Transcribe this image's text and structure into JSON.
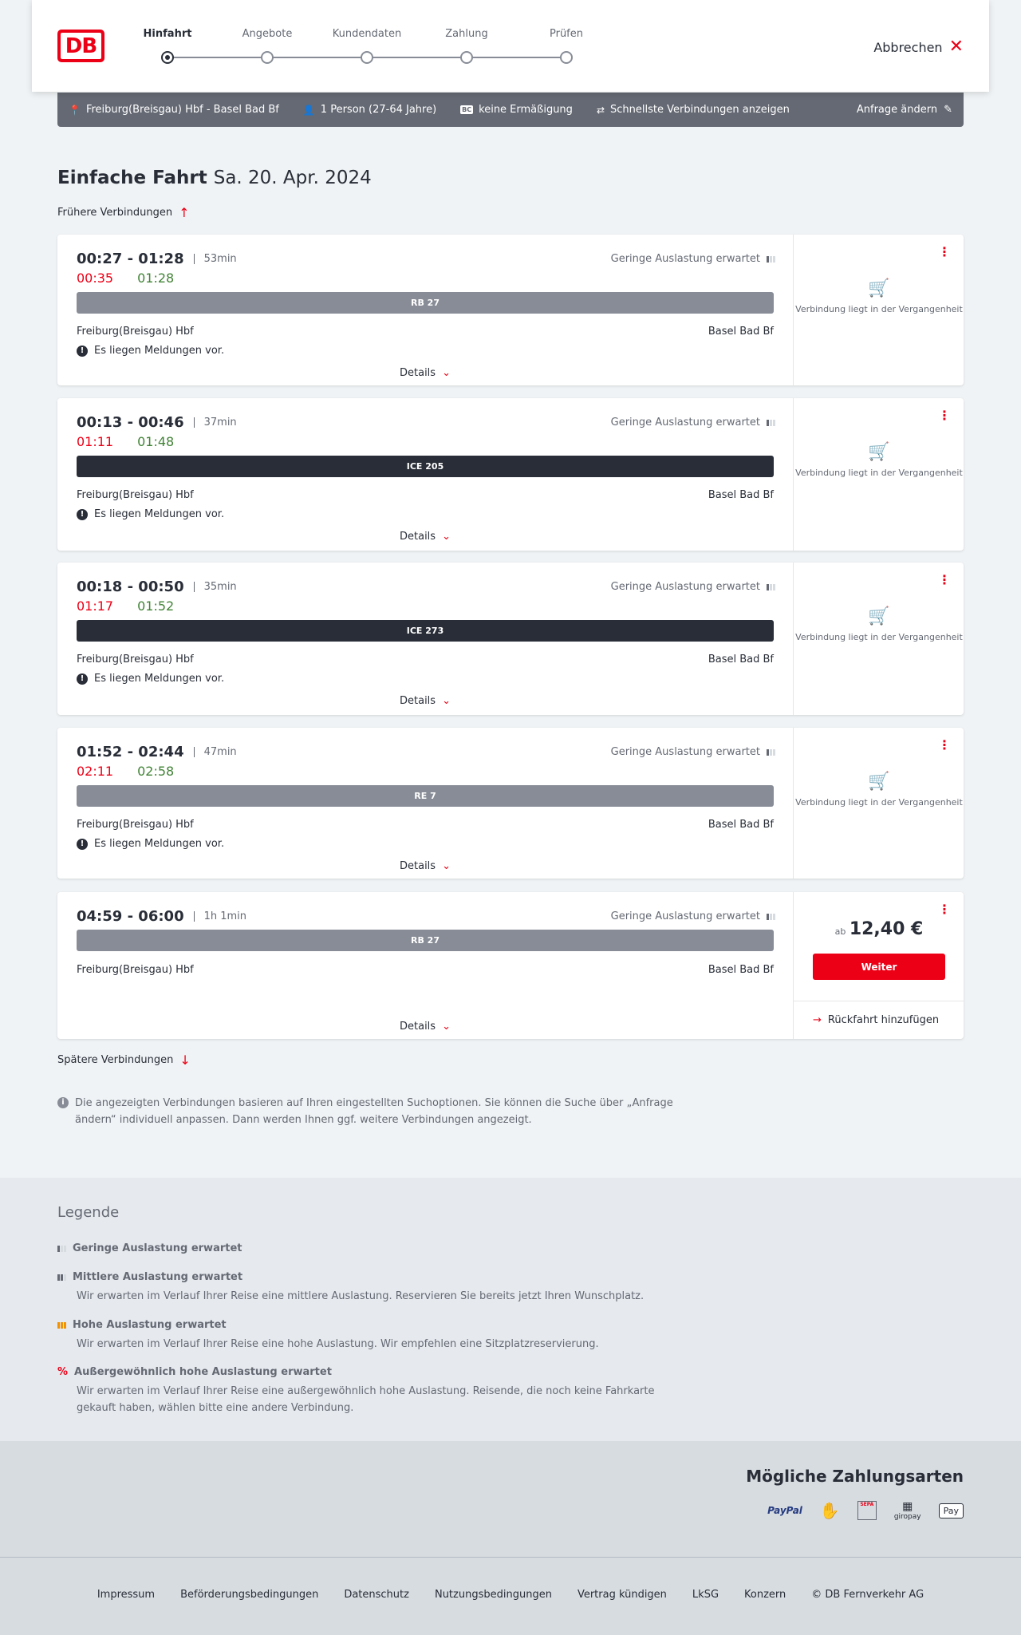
{
  "header": {
    "steps": [
      "Hinfahrt",
      "Angebote",
      "Kundendaten",
      "Zahlung",
      "Prüfen"
    ],
    "active_step": 0,
    "cancel": "Abbrechen",
    "logo": "DB"
  },
  "summary": {
    "route": "Freiburg(Breisgau) Hbf - Basel Bad Bf",
    "persons": "1 Person (27-64 Jahre)",
    "discount": "keine Ermäßigung",
    "discount_badge": "BC",
    "fastest": "Schnellste Verbindungen anzeigen",
    "change": "Anfrage ändern"
  },
  "title": {
    "type": "Einfache Fahrt",
    "date": "Sa. 20. Apr. 2024"
  },
  "earlier": "Frühere Verbindungen",
  "later": "Spätere Verbindungen",
  "connections": [
    {
      "time": "00:27 - 01:28",
      "duration": "53min",
      "dep_actual": "00:35",
      "arr_actual": "01:28",
      "train": "RB 27",
      "train_style": "grey",
      "from": "Freiburg(Breisgau) Hbf",
      "to": "Basel Bad Bf",
      "occupancy": "Geringe Auslastung erwartet",
      "message": "Es liegen Meldungen vor.",
      "details": "Details",
      "status": "Verbindung liegt in der Vergangenheit"
    },
    {
      "time": "00:13 - 00:46",
      "duration": "37min",
      "dep_actual": "01:11",
      "arr_actual": "01:48",
      "train": "ICE 205",
      "train_style": "dark",
      "from": "Freiburg(Breisgau) Hbf",
      "to": "Basel Bad Bf",
      "occupancy": "Geringe Auslastung erwartet",
      "message": "Es liegen Meldungen vor.",
      "details": "Details",
      "status": "Verbindung liegt in der Vergangenheit"
    },
    {
      "time": "00:18 - 00:50",
      "duration": "35min",
      "dep_actual": "01:17",
      "arr_actual": "01:52",
      "train": "ICE 273",
      "train_style": "dark",
      "from": "Freiburg(Breisgau) Hbf",
      "to": "Basel Bad Bf",
      "occupancy": "Geringe Auslastung erwartet",
      "message": "Es liegen Meldungen vor.",
      "details": "Details",
      "status": "Verbindung liegt in der Vergangenheit"
    },
    {
      "time": "01:52 - 02:44",
      "duration": "47min",
      "dep_actual": "02:11",
      "arr_actual": "02:58",
      "train": "RE 7",
      "train_style": "grey",
      "from": "Freiburg(Breisgau) Hbf",
      "to": "Basel Bad Bf",
      "occupancy": "Geringe Auslastung erwartet",
      "message": "Es liegen Meldungen vor.",
      "details": "Details",
      "status": "Verbindung liegt in der Vergangenheit"
    },
    {
      "time": "04:59 - 06:00",
      "duration": "1h 1min",
      "train": "RB 27",
      "train_style": "grey",
      "from": "Freiburg(Breisgau) Hbf",
      "to": "Basel Bad Bf",
      "occupancy": "Geringe Auslastung erwartet",
      "details": "Details",
      "price_prefix": "ab",
      "price": "12,40 €",
      "button": "Weiter",
      "return": "Rückfahrt hinzufügen"
    }
  ],
  "info": "Die angezeigten Verbindungen basieren auf Ihren eingestellten Suchoptionen. Sie können die Suche über „Anfrage ändern“ individuell anpassen. Dann werden Ihnen ggf. weitere Verbindungen angezeigt.",
  "legend": {
    "title": "Legende",
    "items": [
      {
        "title": "Geringe Auslastung erwartet",
        "text": ""
      },
      {
        "title": "Mittlere Auslastung erwartet",
        "text": "Wir erwarten im Verlauf Ihrer Reise eine mittlere Auslastung. Reservieren Sie bereits jetzt Ihren Wunschplatz."
      },
      {
        "title": "Hohe Auslastung erwartet",
        "text": "Wir erwarten im Verlauf Ihrer Reise eine hohe Auslastung. Wir empfehlen eine Sitzplatzreservierung."
      },
      {
        "title": "Außergewöhnlich hohe Auslastung erwartet",
        "text": "Wir erwarten im Verlauf Ihrer Reise eine außergewöhnlich hohe Auslastung. Reisende, die noch keine Fahrkarte gekauft haben, wählen bitte eine andere Verbindung."
      }
    ]
  },
  "payment": {
    "title": "Mögliche Zahlungsarten",
    "methods": [
      "PayPal",
      "SEPA",
      "giropay",
      "Pay"
    ]
  },
  "footer": [
    "Impressum",
    "Beförderungsbedingungen",
    "Datenschutz",
    "Nutzungsbedingungen",
    "Vertrag kündigen",
    "LkSG",
    "Konzern",
    "© DB Fernverkehr AG"
  ],
  "colors": {
    "accent": "#ec0016",
    "delay": "#ec0016",
    "on_time": "#408335",
    "summary_bar": "#646973"
  }
}
